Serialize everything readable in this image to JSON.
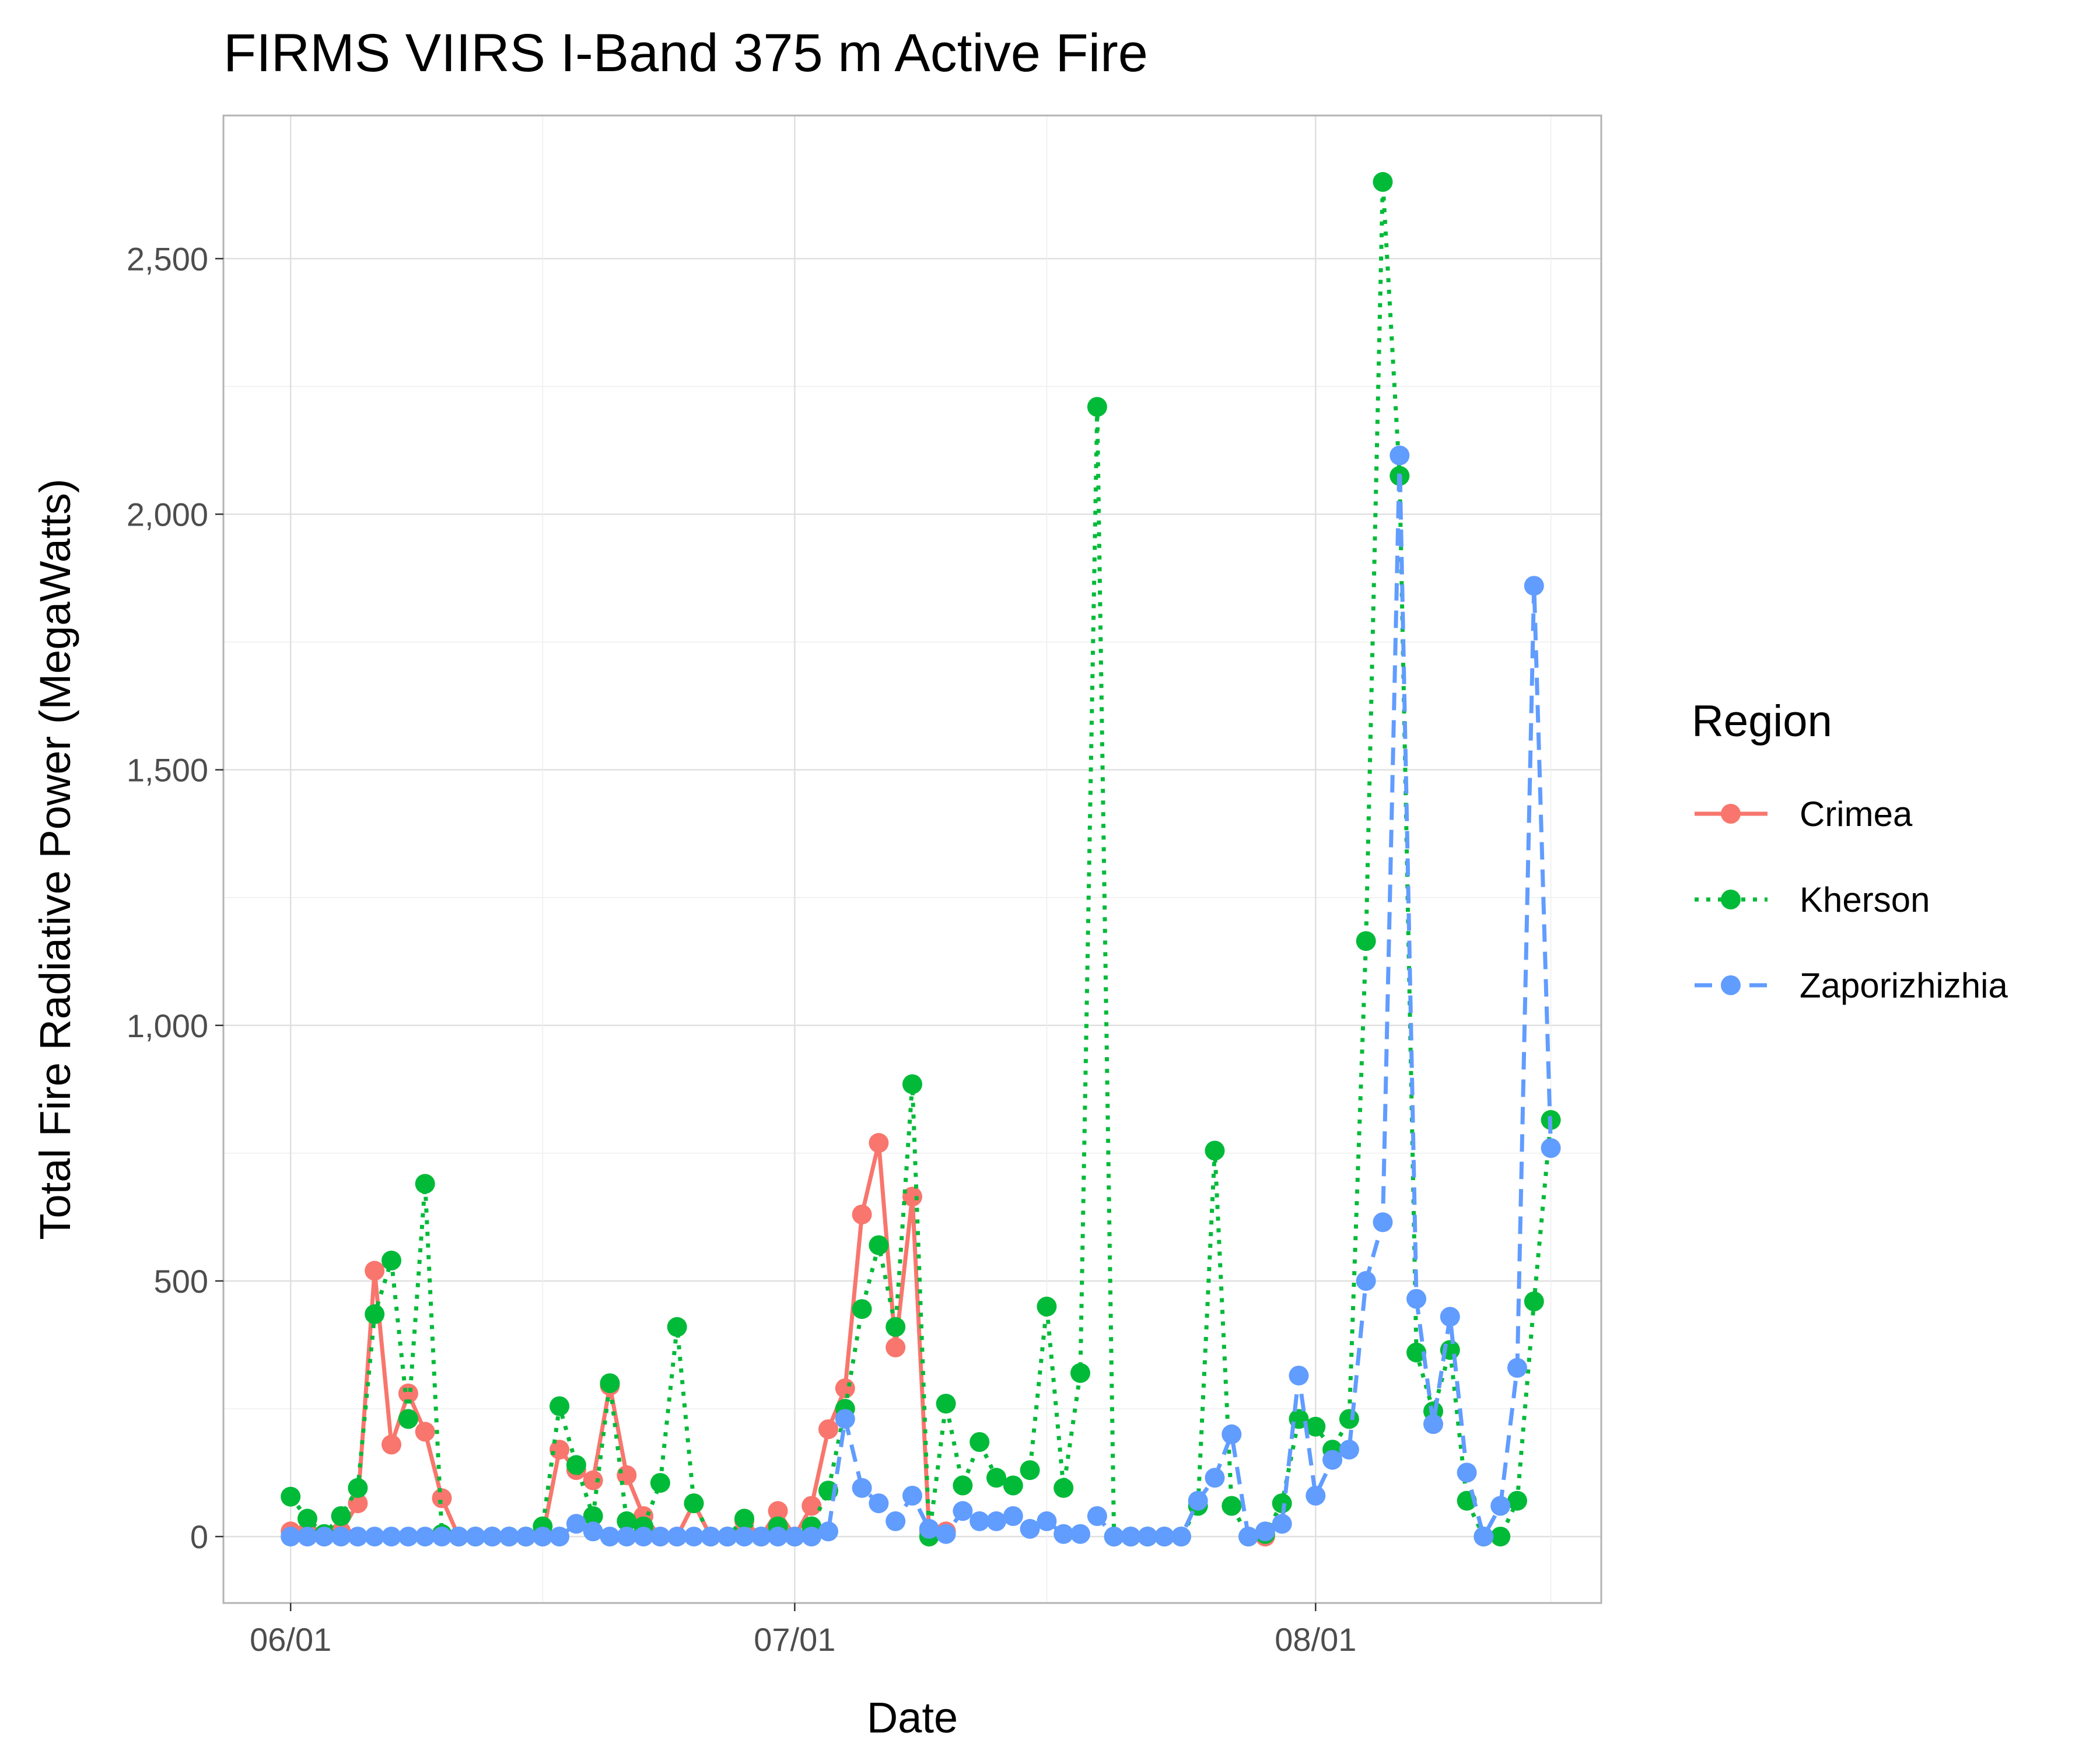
{
  "chart_data": {
    "type": "line",
    "title": "FIRMS VIIRS I-Band 375 m Active Fire",
    "xlabel": "Date",
    "ylabel": "Total Fire Radiative Power (MegaWatts)",
    "x_ticks": [
      "06/01",
      "07/01",
      "08/01"
    ],
    "x_tick_dates": [
      "2022-06-01",
      "2022-07-01",
      "2022-08-01"
    ],
    "y_ticks": [
      0,
      500,
      1000,
      1500,
      2000,
      2500
    ],
    "y_tick_labels": [
      "0",
      "500",
      "1,000",
      "1,500",
      "2,000",
      "2,500"
    ],
    "xlim": [
      "2022-05-28",
      "2022-08-18"
    ],
    "ylim": [
      -130,
      2780
    ],
    "grid": true,
    "legend": {
      "title": "Region",
      "position": "right"
    },
    "series": [
      {
        "name": "Crimea",
        "color": "#F8766D",
        "linestyle": "solid",
        "points": [
          [
            "2022-06-01",
            10
          ],
          [
            "2022-06-02",
            10
          ],
          [
            "2022-06-03",
            0
          ],
          [
            "2022-06-04",
            10
          ],
          [
            "2022-06-05",
            65
          ],
          [
            "2022-06-06",
            520
          ],
          [
            "2022-06-07",
            180
          ],
          [
            "2022-06-08",
            280
          ],
          [
            "2022-06-09",
            205
          ],
          [
            "2022-06-10",
            75
          ],
          [
            "2022-06-11",
            0
          ],
          [
            "2022-06-12",
            0
          ],
          [
            "2022-06-13",
            0
          ],
          [
            "2022-06-14",
            0
          ],
          [
            "2022-06-15",
            0
          ],
          [
            "2022-06-16",
            0
          ],
          [
            "2022-06-17",
            170
          ],
          [
            "2022-06-18",
            130
          ],
          [
            "2022-06-19",
            110
          ],
          [
            "2022-06-20",
            295
          ],
          [
            "2022-06-21",
            120
          ],
          [
            "2022-06-22",
            40
          ],
          [
            "2022-06-23",
            0
          ],
          [
            "2022-06-24",
            0
          ],
          [
            "2022-06-25",
            65
          ],
          [
            "2022-06-26",
            0
          ],
          [
            "2022-06-27",
            0
          ],
          [
            "2022-06-28",
            30
          ],
          [
            "2022-06-29",
            0
          ],
          [
            "2022-06-30",
            50
          ],
          [
            "2022-07-01",
            0
          ],
          [
            "2022-07-02",
            60
          ],
          [
            "2022-07-03",
            210
          ],
          [
            "2022-07-04",
            290
          ],
          [
            "2022-07-05",
            630
          ],
          [
            "2022-07-06",
            770
          ],
          [
            "2022-07-07",
            370
          ],
          [
            "2022-07-08",
            665
          ],
          [
            "2022-07-09",
            10
          ],
          [
            "2022-07-10",
            10
          ],
          [
            "2022-07-20",
            0
          ],
          [
            "2022-07-21",
            0
          ],
          [
            "2022-07-22",
            0
          ],
          [
            "2022-07-23",
            0
          ],
          [
            "2022-07-24",
            0
          ],
          [
            "2022-07-29",
            0
          ],
          [
            "2022-08-11",
            0
          ]
        ]
      },
      {
        "name": "Kherson",
        "color": "#00BA38",
        "linestyle": "dotted",
        "points": [
          [
            "2022-06-01",
            78
          ],
          [
            "2022-06-02",
            35
          ],
          [
            "2022-06-03",
            5
          ],
          [
            "2022-06-04",
            40
          ],
          [
            "2022-06-05",
            95
          ],
          [
            "2022-06-06",
            435
          ],
          [
            "2022-06-07",
            540
          ],
          [
            "2022-06-08",
            230
          ],
          [
            "2022-06-09",
            690
          ],
          [
            "2022-06-10",
            5
          ],
          [
            "2022-06-11",
            0
          ],
          [
            "2022-06-12",
            0
          ],
          [
            "2022-06-13",
            0
          ],
          [
            "2022-06-14",
            0
          ],
          [
            "2022-06-15",
            0
          ],
          [
            "2022-06-16",
            20
          ],
          [
            "2022-06-17",
            255
          ],
          [
            "2022-06-18",
            140
          ],
          [
            "2022-06-19",
            40
          ],
          [
            "2022-06-20",
            300
          ],
          [
            "2022-06-21",
            30
          ],
          [
            "2022-06-22",
            20
          ],
          [
            "2022-06-23",
            105
          ],
          [
            "2022-06-24",
            410
          ],
          [
            "2022-06-25",
            65
          ],
          [
            "2022-06-26",
            0
          ],
          [
            "2022-06-27",
            0
          ],
          [
            "2022-06-28",
            35
          ],
          [
            "2022-06-29",
            0
          ],
          [
            "2022-06-30",
            20
          ],
          [
            "2022-07-01",
            0
          ],
          [
            "2022-07-02",
            20
          ],
          [
            "2022-07-03",
            90
          ],
          [
            "2022-07-04",
            250
          ],
          [
            "2022-07-05",
            445
          ],
          [
            "2022-07-06",
            570
          ],
          [
            "2022-07-07",
            410
          ],
          [
            "2022-07-08",
            885
          ],
          [
            "2022-07-09",
            0
          ],
          [
            "2022-07-10",
            260
          ],
          [
            "2022-07-11",
            100
          ],
          [
            "2022-07-12",
            185
          ],
          [
            "2022-07-13",
            115
          ],
          [
            "2022-07-14",
            100
          ],
          [
            "2022-07-15",
            130
          ],
          [
            "2022-07-16",
            450
          ],
          [
            "2022-07-17",
            95
          ],
          [
            "2022-07-18",
            320
          ],
          [
            "2022-07-19",
            2210
          ],
          [
            "2022-07-20",
            0
          ],
          [
            "2022-07-21",
            0
          ],
          [
            "2022-07-22",
            0
          ],
          [
            "2022-07-23",
            0
          ],
          [
            "2022-07-24",
            0
          ],
          [
            "2022-07-25",
            60
          ],
          [
            "2022-07-26",
            755
          ],
          [
            "2022-07-27",
            60
          ],
          [
            "2022-07-28",
            0
          ],
          [
            "2022-07-29",
            5
          ],
          [
            "2022-07-30",
            65
          ],
          [
            "2022-07-31",
            230
          ],
          [
            "2022-08-01",
            215
          ],
          [
            "2022-08-02",
            170
          ],
          [
            "2022-08-03",
            230
          ],
          [
            "2022-08-04",
            1165
          ],
          [
            "2022-08-05",
            2650
          ],
          [
            "2022-08-06",
            2075
          ],
          [
            "2022-08-07",
            360
          ],
          [
            "2022-08-08",
            245
          ],
          [
            "2022-08-09",
            365
          ],
          [
            "2022-08-10",
            70
          ],
          [
            "2022-08-11",
            0
          ],
          [
            "2022-08-12",
            0
          ],
          [
            "2022-08-13",
            70
          ],
          [
            "2022-08-14",
            460
          ],
          [
            "2022-08-15",
            815
          ]
        ]
      },
      {
        "name": "Zaporizhizhia",
        "color": "#619CFF",
        "linestyle": "dashed",
        "points": [
          [
            "2022-06-01",
            0
          ],
          [
            "2022-06-02",
            0
          ],
          [
            "2022-06-03",
            0
          ],
          [
            "2022-06-04",
            0
          ],
          [
            "2022-06-05",
            0
          ],
          [
            "2022-06-06",
            0
          ],
          [
            "2022-06-07",
            0
          ],
          [
            "2022-06-08",
            0
          ],
          [
            "2022-06-09",
            0
          ],
          [
            "2022-06-10",
            0
          ],
          [
            "2022-06-11",
            0
          ],
          [
            "2022-06-12",
            0
          ],
          [
            "2022-06-13",
            0
          ],
          [
            "2022-06-14",
            0
          ],
          [
            "2022-06-15",
            0
          ],
          [
            "2022-06-16",
            0
          ],
          [
            "2022-06-17",
            0
          ],
          [
            "2022-06-18",
            25
          ],
          [
            "2022-06-19",
            10
          ],
          [
            "2022-06-20",
            0
          ],
          [
            "2022-06-21",
            0
          ],
          [
            "2022-06-22",
            0
          ],
          [
            "2022-06-23",
            0
          ],
          [
            "2022-06-24",
            0
          ],
          [
            "2022-06-25",
            0
          ],
          [
            "2022-06-26",
            0
          ],
          [
            "2022-06-27",
            0
          ],
          [
            "2022-06-28",
            0
          ],
          [
            "2022-06-29",
            0
          ],
          [
            "2022-06-30",
            0
          ],
          [
            "2022-07-01",
            0
          ],
          [
            "2022-07-02",
            0
          ],
          [
            "2022-07-03",
            10
          ],
          [
            "2022-07-04",
            230
          ],
          [
            "2022-07-05",
            95
          ],
          [
            "2022-07-06",
            65
          ],
          [
            "2022-07-07",
            30
          ],
          [
            "2022-07-08",
            80
          ],
          [
            "2022-07-09",
            15
          ],
          [
            "2022-07-10",
            5
          ],
          [
            "2022-07-11",
            50
          ],
          [
            "2022-07-12",
            30
          ],
          [
            "2022-07-13",
            30
          ],
          [
            "2022-07-14",
            40
          ],
          [
            "2022-07-15",
            15
          ],
          [
            "2022-07-16",
            30
          ],
          [
            "2022-07-17",
            5
          ],
          [
            "2022-07-18",
            5
          ],
          [
            "2022-07-19",
            40
          ],
          [
            "2022-07-20",
            0
          ],
          [
            "2022-07-21",
            0
          ],
          [
            "2022-07-22",
            0
          ],
          [
            "2022-07-23",
            0
          ],
          [
            "2022-07-24",
            0
          ],
          [
            "2022-07-25",
            70
          ],
          [
            "2022-07-26",
            115
          ],
          [
            "2022-07-27",
            200
          ],
          [
            "2022-07-28",
            0
          ],
          [
            "2022-07-29",
            10
          ],
          [
            "2022-07-30",
            25
          ],
          [
            "2022-07-31",
            315
          ],
          [
            "2022-08-01",
            80
          ],
          [
            "2022-08-02",
            150
          ],
          [
            "2022-08-03",
            170
          ],
          [
            "2022-08-04",
            500
          ],
          [
            "2022-08-05",
            615
          ],
          [
            "2022-08-06",
            2115
          ],
          [
            "2022-08-07",
            465
          ],
          [
            "2022-08-08",
            220
          ],
          [
            "2022-08-09",
            430
          ],
          [
            "2022-08-10",
            125
          ],
          [
            "2022-08-11",
            0
          ],
          [
            "2022-08-12",
            60
          ],
          [
            "2022-08-13",
            330
          ],
          [
            "2022-08-14",
            1860
          ],
          [
            "2022-08-15",
            760
          ]
        ]
      }
    ]
  }
}
